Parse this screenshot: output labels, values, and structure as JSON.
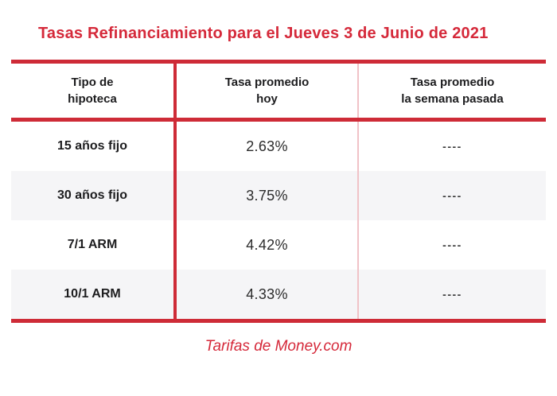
{
  "page": {
    "title": "Tasas Refinanciamiento para el Jueves 3 de Junio de 2021",
    "footer": "Tarifas de Money.com"
  },
  "table": {
    "headers": [
      {
        "line1": "Tipo de",
        "line2": "hipoteca"
      },
      {
        "line1": "Tasa promedio",
        "line2": "hoy"
      },
      {
        "line1": "Tasa promedio",
        "line2": "la semana pasada"
      }
    ],
    "rows": [
      {
        "label": "15 años fijo",
        "today": "2.63%",
        "last_week": "----"
      },
      {
        "label": "30 años fijo",
        "today": "3.75%",
        "last_week": "----"
      },
      {
        "label": "7/1 ARM",
        "today": "4.42%",
        "last_week": "----"
      },
      {
        "label": "10/1 ARM",
        "today": "4.33%",
        "last_week": "----"
      }
    ]
  },
  "colors": {
    "accent_red_text": "#d5293a",
    "line_red": "#ce2b37",
    "divider_pink": "#f0c2c7",
    "row_alt_bg": "#f5f5f7",
    "text_dark": "#1d1d1f"
  },
  "chart_data": {
    "type": "table",
    "title": "Tasas Refinanciamiento para el Jueves 3 de Junio de 2021",
    "columns": [
      "Tipo de hipoteca",
      "Tasa promedio hoy",
      "Tasa promedio la semana pasada"
    ],
    "rows": [
      [
        "15 años fijo",
        "2.63%",
        "----"
      ],
      [
        "30 años fijo",
        "3.75%",
        "----"
      ],
      [
        "7/1 ARM",
        "4.42%",
        "----"
      ],
      [
        "10/1 ARM",
        "4.33%",
        "----"
      ]
    ],
    "rates_today_numeric_percent": [
      2.63,
      3.75,
      4.42,
      4.33
    ],
    "source": "Tarifas de Money.com",
    "legend_position": "none",
    "grid": "off"
  }
}
